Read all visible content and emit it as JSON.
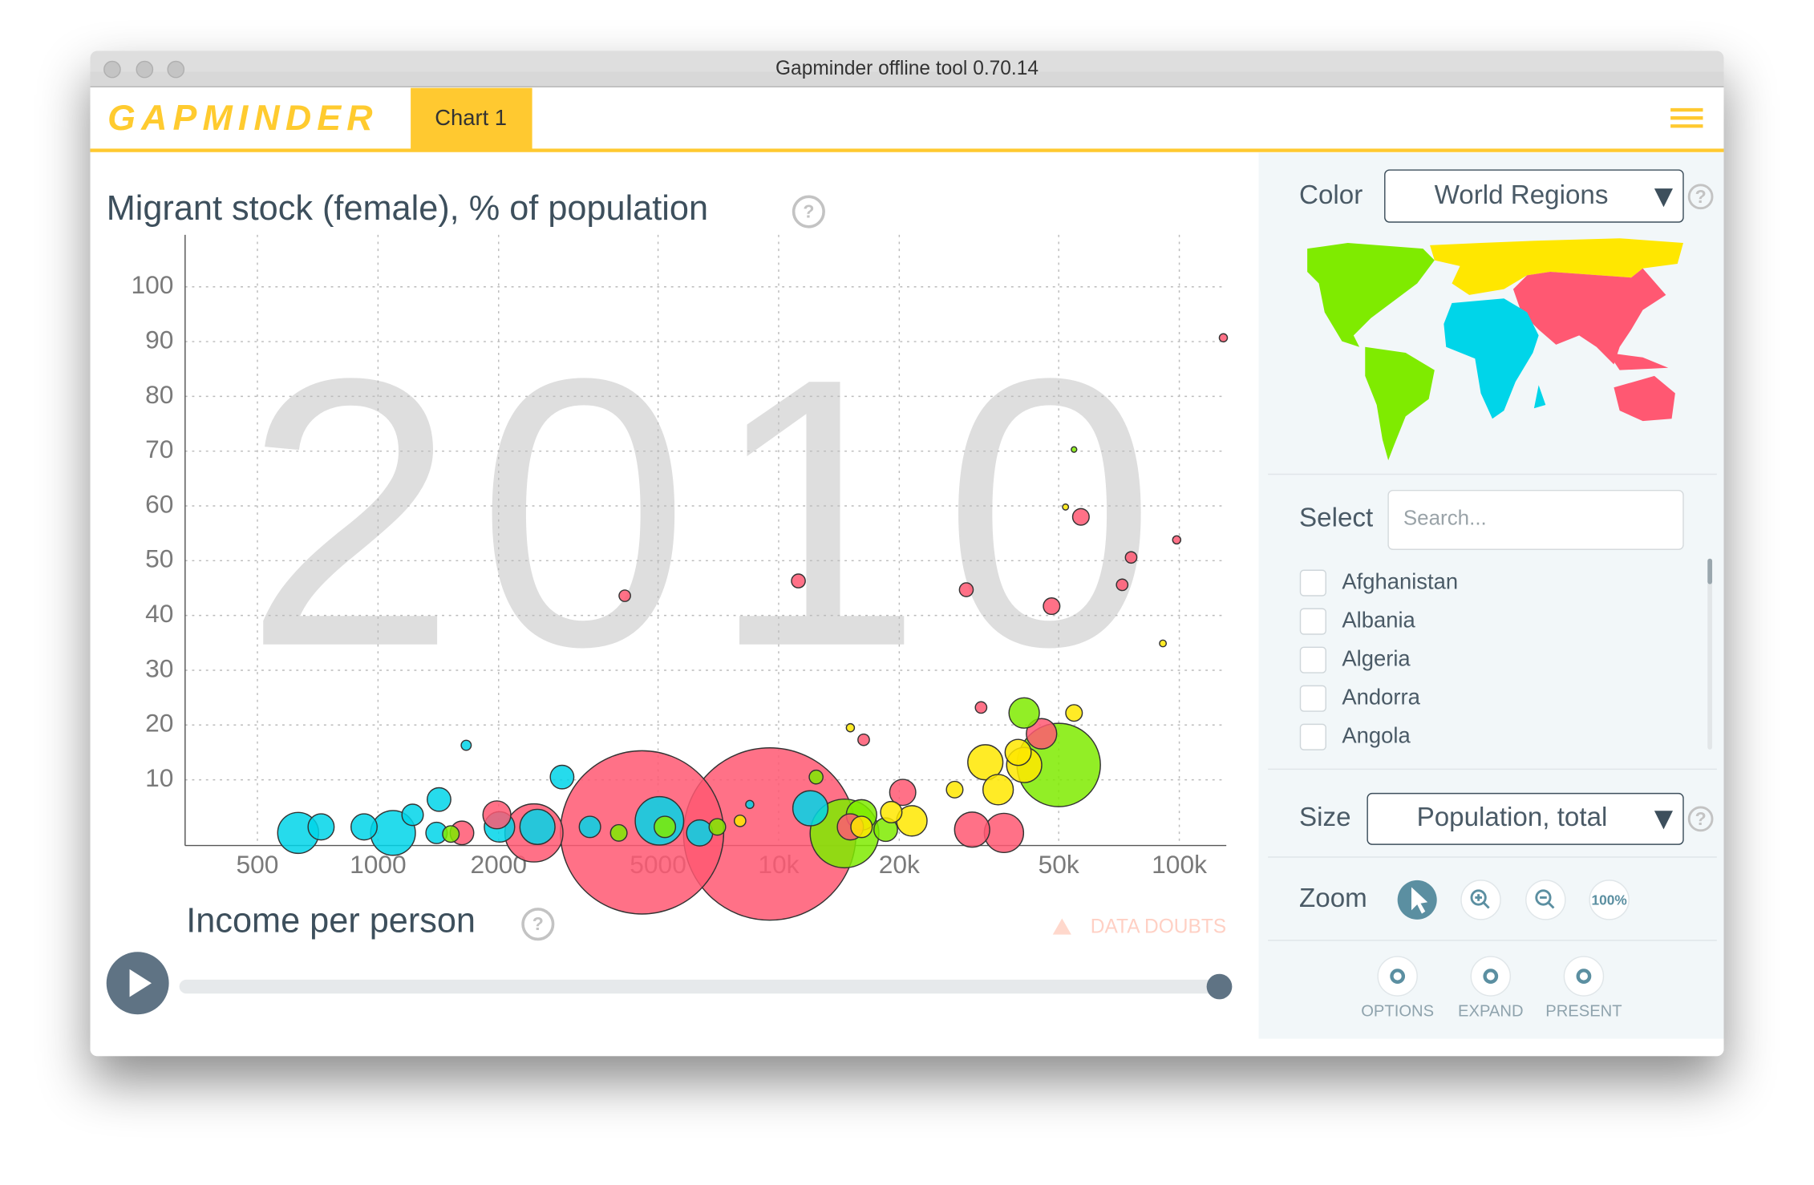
{
  "window": {
    "title": "Gapminder offline tool 0.70.14"
  },
  "header": {
    "logo": "GAPMINDER",
    "tab": "Chart 1"
  },
  "help_icon": "?",
  "chart_data": {
    "type": "bubble",
    "y_label": "Migrant stock (female), % of population",
    "x_label": "Income per person",
    "year": "2010",
    "xscale": "log",
    "xlim": [
      330,
      131000
    ],
    "ylim": [
      -2,
      109.5
    ],
    "xticks": [
      500,
      1000,
      2000,
      5000,
      {
        "value": 10000,
        "label": "10k"
      },
      {
        "value": 20000,
        "label": "20k"
      },
      {
        "value": 50000,
        "label": "50k"
      },
      {
        "value": 100000,
        "label": "100k"
      }
    ],
    "yticks": [
      10,
      20,
      30,
      40,
      50,
      60,
      70,
      80,
      90,
      100
    ],
    "grid": true,
    "series": [
      {
        "color": "#ff5872",
        "x": [
          4560,
          9500,
          1620,
          1980,
          2450,
          4130,
          11200,
          29400,
          48000,
          56800,
          75800,
          72000,
          128800,
          98500,
          20400,
          30400,
          36500,
          45300,
          16300,
          32000,
          15100
        ],
        "values": [
          0.4,
          0.1,
          0.3,
          3.6,
          0.3,
          43.6,
          46.3,
          44.7,
          41.7,
          58,
          50.6,
          45.6,
          90.7,
          53.8,
          7.7,
          0.9,
          0.3,
          18.4,
          17.3,
          23.2,
          1.4
        ],
        "sizes": [
          1200,
          1340,
          19,
          28,
          140,
          3,
          5,
          5,
          8,
          8,
          3,
          3,
          1,
          1,
          24,
          47,
          60,
          34,
          3,
          3,
          24
        ]
      },
      {
        "color": "#00d5e9",
        "x": [
          632,
          721,
          923,
          1090,
          1220,
          1420,
          1400,
          2010,
          2500,
          2880,
          1660,
          5040,
          6350,
          12000,
          8470,
          3380
        ],
        "values": [
          0.3,
          1.4,
          1.4,
          0.3,
          3.6,
          6.4,
          0.3,
          1.4,
          1.4,
          10.5,
          16.3,
          2.5,
          0.3,
          4.8,
          5.5,
          1.4
        ],
        "sizes": [
          66,
          24,
          24,
          80,
          15,
          19,
          15,
          34,
          47,
          19,
          2,
          95,
          24,
          47,
          1,
          15
        ]
      },
      {
        "color": "#7feb00",
        "x": [
          3990,
          5200,
          12400,
          14600,
          16100,
          18500,
          50000,
          41000,
          1520,
          7030,
          54600
        ],
        "values": [
          0.3,
          1.4,
          10.5,
          0.2,
          3.6,
          0.9,
          12.7,
          22.2,
          0.1,
          1.4,
          70.3
        ],
        "sizes": [
          8,
          15,
          5,
          200,
          34,
          19,
          300,
          34,
          8,
          8,
          0.2
        ]
      },
      {
        "color": "#ffe700",
        "x": [
          32800,
          35300,
          41000,
          21500,
          27500,
          54600,
          16100,
          19100,
          39600,
          8010,
          15100,
          91000,
          52000
        ],
        "values": [
          13.2,
          8.2,
          12.7,
          2.5,
          8.2,
          22.2,
          1.4,
          4.1,
          15,
          2.5,
          19.5,
          34.9,
          59.8
        ],
        "sizes": [
          47,
          34,
          47,
          34,
          8,
          8,
          15,
          15,
          24,
          3,
          1,
          0.5,
          0.3
        ]
      }
    ]
  },
  "chart_controls": {
    "data_doubts": "DATA DOUBTS"
  },
  "sidebar": {
    "color": {
      "label": "Color",
      "value": "World Regions"
    },
    "select": {
      "label": "Select",
      "placeholder": "Search...",
      "items": [
        "Afghanistan",
        "Albania",
        "Algeria",
        "Andorra",
        "Angola"
      ]
    },
    "size": {
      "label": "Size",
      "value": "Population, total"
    },
    "zoom": {
      "label": "Zoom",
      "reset": "100%"
    },
    "buttons": [
      "OPTIONS",
      "EXPAND",
      "PRESENT"
    ]
  }
}
